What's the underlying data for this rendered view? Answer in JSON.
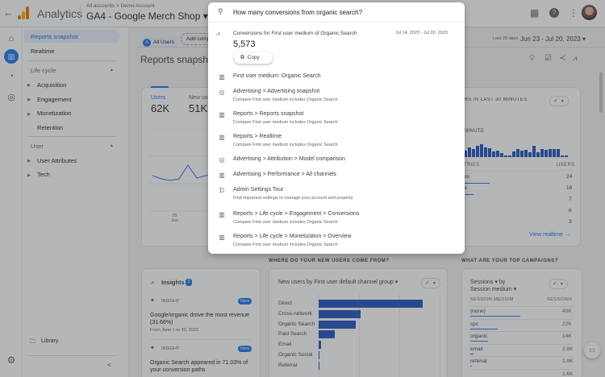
{
  "topbar": {
    "app_name": "Analytics",
    "breadcrumb": "All accounts > Demo Account",
    "property": "GA4 - Google Merch Shop",
    "icons": [
      "apps-grid-icon",
      "help-icon",
      "more-vert-icon",
      "avatar"
    ]
  },
  "rail": {
    "items": [
      "home-icon",
      "reports-icon",
      "explore-icon",
      "advertising-icon"
    ],
    "settings_icon": "gear-icon"
  },
  "sidebar": {
    "items": [
      {
        "label": "Reports snapshot",
        "active": true
      },
      {
        "label": "Realtime"
      }
    ],
    "sections": [
      {
        "title": "Life cycle",
        "items": [
          "Acquisition",
          "Engagement",
          "Monetization",
          "Retention"
        ]
      },
      {
        "title": "User",
        "items": [
          "User Attributes",
          "Tech"
        ]
      }
    ],
    "library": "Library",
    "collapse": "<"
  },
  "main": {
    "comparison_chip": "All Users",
    "comparison_avatar": "A",
    "add_comparison": "Add comparison",
    "date_label": "Last 28 days",
    "date_range": "Jun 23 - Jul 20, 2023",
    "page_title": "Reports snapshot",
    "metrics": [
      {
        "label": "Users",
        "value": "62K"
      },
      {
        "label": "New users",
        "value": "51K"
      }
    ],
    "x_tick": "25",
    "x_tick_month": "Jun",
    "realtime": {
      "title": "USERS IN LAST 30 MINUTES",
      "per_minute": "USERS PER MINUTE",
      "col_country": "COUNTRIES",
      "col_users": "USERS",
      "rows": [
        {
          "country": "United States",
          "users": "24"
        },
        {
          "country": "India",
          "users": "16"
        },
        {
          "country": "",
          "users": "7"
        },
        {
          "country": "",
          "users": "6"
        },
        {
          "country": "",
          "users": "3"
        }
      ],
      "link": "View realtime"
    },
    "insights": {
      "title": "Insights",
      "count": "2",
      "items": [
        {
          "tag": "INSIGHT",
          "badge": "New",
          "text": "Google/organic drove the most revenue (31.66%)",
          "date": "From June 1 to 30, 2023"
        },
        {
          "tag": "INSIGHT",
          "badge": "New",
          "text": "Organic Search appeared in 71.03% of your conversion paths",
          "date": "From June 1 to 30, 2023"
        }
      ]
    },
    "new_users": {
      "section": "WHERE DO YOUR NEW USERS COME FROM?",
      "selector": "New users by First user default channel group"
    },
    "campaigns": {
      "section": "WHAT ARE YOUR TOP CAMPAIGNS?",
      "selector_1": "Sessions",
      "selector_by": "by",
      "selector_2": "Session medium",
      "col_1": "SESSION MEDIUM",
      "col_2": "SESSIONS",
      "rows": [
        {
          "medium": "(none)",
          "sessions": "40K",
          "bar": 100
        },
        {
          "medium": "cpc",
          "sessions": "22K",
          "bar": 55
        },
        {
          "medium": "organic",
          "sessions": "14K",
          "bar": 35
        },
        {
          "medium": "email",
          "sessions": "2.8K",
          "bar": 7
        },
        {
          "medium": "referral",
          "sessions": "1.8K",
          "bar": 4
        },
        {
          "medium": "",
          "sessions": "1.6K",
          "bar": 3
        }
      ]
    }
  },
  "chart_data": {
    "type": "bar",
    "orientation": "horizontal",
    "title": "New users by First user default channel group",
    "categories": [
      "Direct",
      "Cross-network",
      "Organic Search",
      "Paid Search",
      "Email",
      "Organic Social",
      "Referral"
    ],
    "values": [
      26000,
      10500,
      9200,
      4000,
      700,
      200,
      150
    ],
    "xlabel": "",
    "ylabel": "",
    "grid": true
  },
  "search": {
    "query": "How many conversions from organic search?",
    "answer": {
      "title": "Conversions for First user medium of Organic Search",
      "value": "5,573",
      "date": "Jul 14, 2023 - Jul 20, 2023",
      "copy": "Copy"
    },
    "results": [
      {
        "icon": "report-icon",
        "title": "First user medium: Organic Search",
        "sub": ""
      },
      {
        "icon": "advertising-icon",
        "title": "Advertising > Advertising snapshot",
        "sub": "Compare First user medium includes Organic Search"
      },
      {
        "icon": "report-icon",
        "title": "Reports > Reports snapshot",
        "sub": "Compare First user medium includes Organic Search"
      },
      {
        "icon": "report-icon",
        "title": "Reports > Realtime",
        "sub": "Compare First user medium includes Organic Search"
      },
      {
        "icon": "advertising-icon",
        "title": "Advertising > Attribution > Model comparison",
        "sub": ""
      },
      {
        "icon": "report-icon",
        "title": "Advertising > Performance > All channels",
        "sub": ""
      },
      {
        "icon": "tour-icon",
        "title": "Admin Settings Tour",
        "sub": "Find important settings to manage your account and property"
      },
      {
        "icon": "report-icon",
        "title": "Reports > Life cycle > Engagement > Conversions",
        "sub": "Compare First user medium includes Organic Search"
      },
      {
        "icon": "report-icon",
        "title": "Reports > Life cycle > Monetization > Overview",
        "sub": "Compare First user medium includes Organic Search"
      }
    ]
  },
  "colors": {
    "accent": "#1a73e8",
    "bar": "#1e4fbd",
    "check": "#1e8e3e"
  }
}
